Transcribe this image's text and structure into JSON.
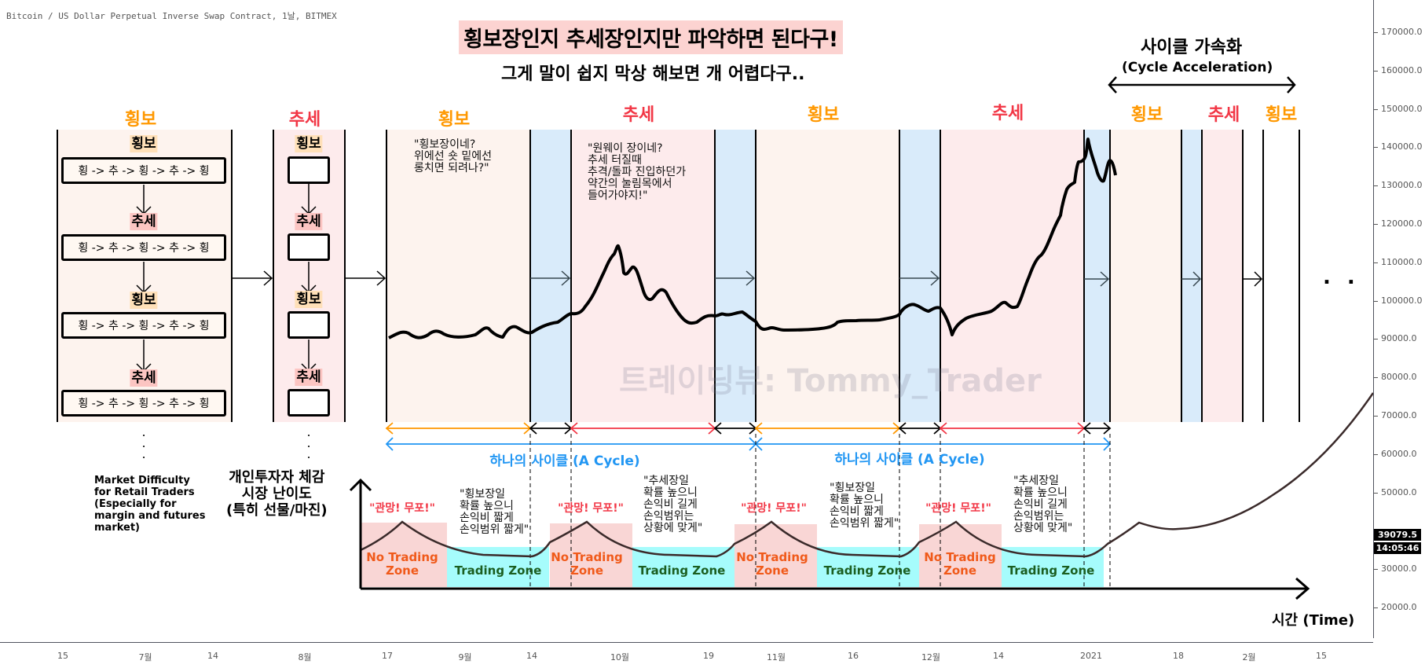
{
  "chart_header": {
    "symbol": "Bitcoin / US Dollar Perpetual Inverse Swap Contract, 1날, BITMEX"
  },
  "headline": {
    "title": "횡보장인지 추세장인지만 파악하면 된다구!",
    "subtitle": "그게 말이 쉽지 막상 해보면 개 어렵다구.."
  },
  "acceleration": {
    "title": "사이클 가속화",
    "subtitle": "(Cycle Acceleration)"
  },
  "phases": [
    {
      "label": "횡보",
      "type": "range"
    },
    {
      "label": "추세",
      "type": "trend"
    },
    {
      "label": "횡보",
      "type": "range"
    },
    {
      "label": "추세",
      "type": "trend"
    },
    {
      "label": "횡보",
      "type": "range"
    },
    {
      "label": "추세",
      "type": "trend"
    },
    {
      "label": "횡보",
      "type": "range"
    },
    {
      "label": "추세",
      "type": "trend"
    },
    {
      "label": "횡보",
      "type": "range"
    }
  ],
  "flow_diagram": {
    "steps": [
      {
        "tag": "횡보",
        "type": "range",
        "content": "횡 -> 추 -> 횡 -> 추 -> 횡"
      },
      {
        "tag": "추세",
        "type": "trend",
        "content": "횡 -> 추 -> 횡 -> 추 -> 횡"
      },
      {
        "tag": "횡보",
        "type": "range",
        "content": "횡 -> 추 -> 횡 -> 추 -> 횡"
      },
      {
        "tag": "추세",
        "type": "trend",
        "content": "횡 -> 추 -> 횡 -> 추 -> 횡"
      }
    ],
    "continuation": ".\n.\n."
  },
  "quotes": {
    "range_thought": "\"횡보장이네?\n위에선 숏 밑에선\n롱치면 되려나?\"",
    "trend_thought": "\"원웨이 장이네?\n추세 터질때\n추격/돌파 진입하던가\n약간의 눌림목에서\n들어가야지!\""
  },
  "cycles": [
    {
      "label": "하나의 사이클 (A Cycle)"
    },
    {
      "label": "하나의 사이클 (A Cycle)"
    }
  ],
  "difficulty": {
    "title_en": "Market Difficulty\nfor Retail Traders\n(Especially for\nmargin and futures\nmarket)",
    "title_ko": "개인투자자 체감\n시장 난이도\n(특히 선물/마진)",
    "warning": "\"관망! 무포!\"",
    "range_advice": "\"횡보장일\n확률 높으니\n손익비 짧게\n손익범위 짧게\"",
    "trend_advice": "\"추세장일\n확률 높으니\n손익비 길게\n손익범위는\n상황에 맞게\"",
    "no_trading_zone": "No Trading\nZone",
    "trading_zone": "Trading Zone",
    "time_axis": "시간 (Time)"
  },
  "ellipsis": ". . .",
  "watermark": "트레이딩뷰: Tommy_Trader",
  "price_axis": {
    "ticks": [
      "170000.0",
      "160000.0",
      "150000.0",
      "140000.0",
      "130000.0",
      "120000.0",
      "110000.0",
      "100000.0",
      "90000.0",
      "80000.0",
      "70000.0",
      "60000.0",
      "50000.0",
      "30000.0",
      "20000.0"
    ],
    "last_price": "39079.5",
    "countdown": "14:05:46"
  },
  "time_axis": {
    "ticks": [
      "15",
      "7월",
      "14",
      "8월",
      "17",
      "9월",
      "14",
      "10월",
      "19",
      "11월",
      "16",
      "12월",
      "14",
      "2021",
      "18",
      "2월",
      "15"
    ]
  },
  "colors": {
    "range_bg": "#fdf3ee",
    "trend_bg": "#fdebec",
    "transition_bg": "#d9ebfa",
    "range_accent": "#ff9800",
    "trend_accent": "#f23645",
    "cycle_accent": "#2196f3",
    "no_trade_bg": "#f9d6d5",
    "trade_bg": "#a6fcfc"
  }
}
